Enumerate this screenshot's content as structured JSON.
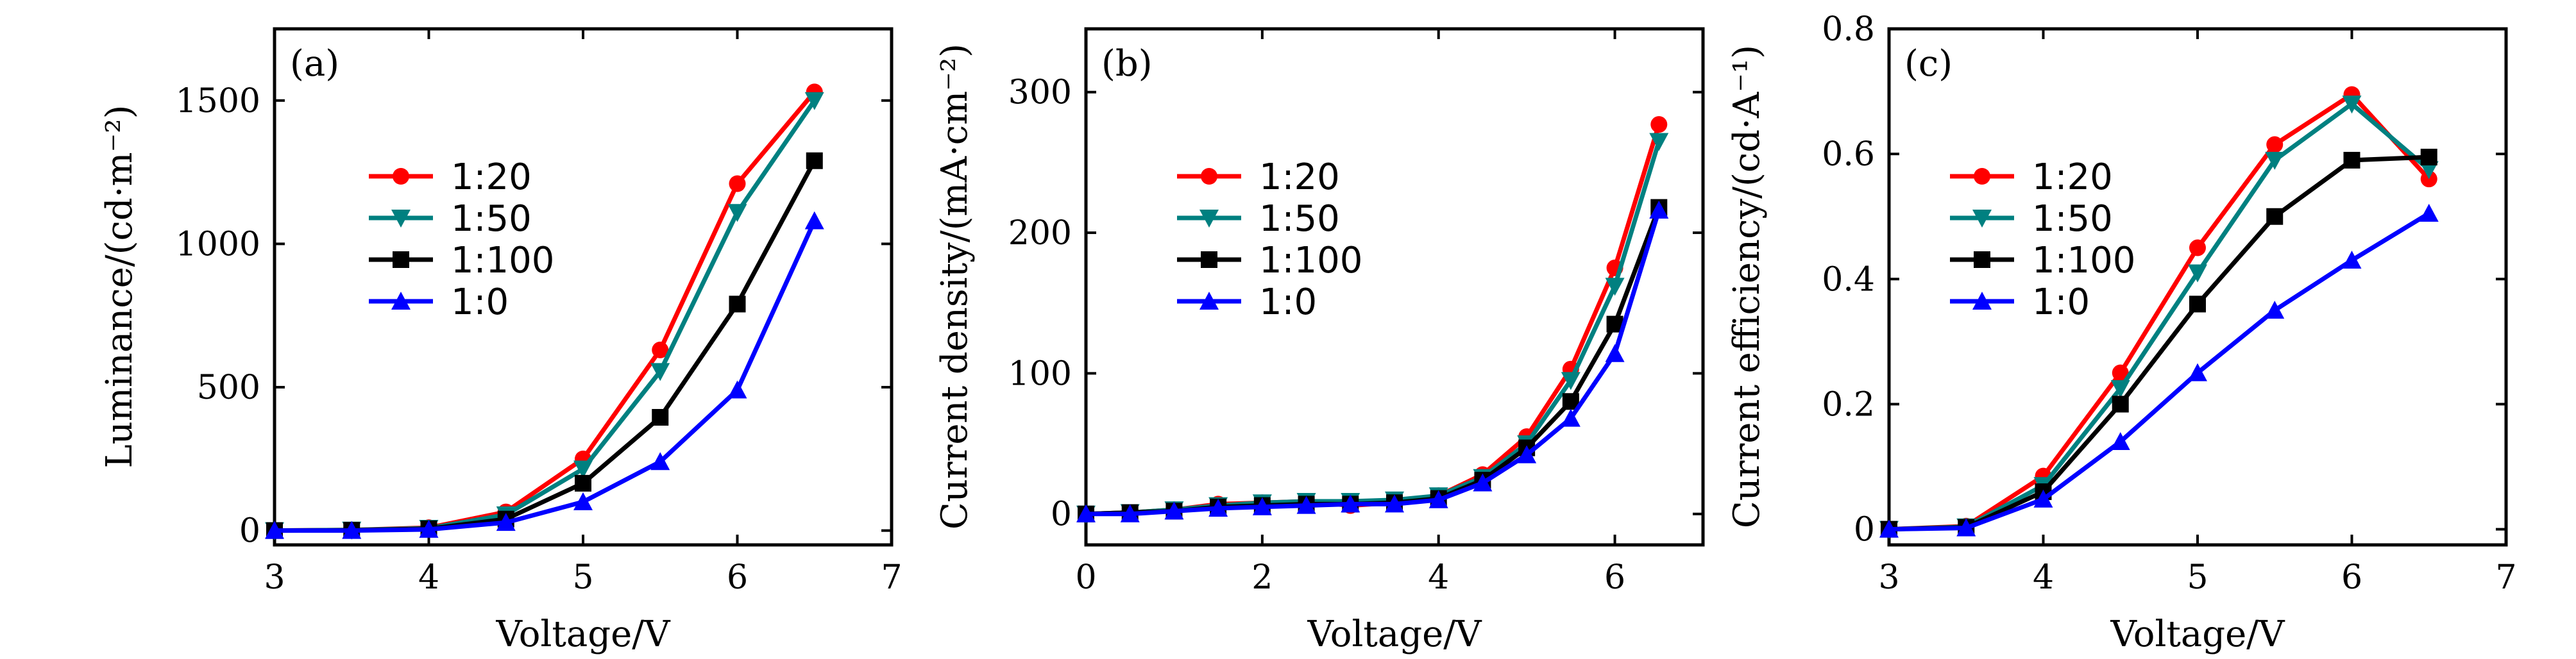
{
  "chart_data": [
    {
      "panel": "(a)",
      "type": "line",
      "xlabel": "Voltage/V",
      "ylabel": "Luminance/(cd·m⁻²)",
      "xlim": [
        3,
        7
      ],
      "ylim": [
        -50,
        1750
      ],
      "xticks": [
        3,
        4,
        5,
        6,
        7
      ],
      "yticks": [
        0,
        500,
        1000,
        1500
      ],
      "x": [
        3,
        3.5,
        4,
        4.5,
        5,
        5.5,
        6,
        6.5
      ],
      "series": [
        {
          "name": "1:20",
          "color": "#ff0000",
          "marker": "circle",
          "values": [
            0,
            2,
            10,
            65,
            250,
            630,
            1210,
            1530
          ]
        },
        {
          "name": "1:50",
          "color": "#008080",
          "marker": "triangle-down",
          "values": [
            0,
            2,
            8,
            55,
            215,
            555,
            1110,
            1500
          ]
        },
        {
          "name": "1:100",
          "color": "#000000",
          "marker": "square",
          "values": [
            0,
            1,
            6,
            40,
            165,
            395,
            790,
            1290
          ]
        },
        {
          "name": "1:0",
          "color": "#0000ff",
          "marker": "triangle-up",
          "values": [
            0,
            0,
            4,
            28,
            100,
            240,
            490,
            1080
          ]
        }
      ]
    },
    {
      "panel": "(b)",
      "type": "line",
      "xlabel": "Voltage/V",
      "ylabel": "Current density/(mA·cm⁻²)",
      "xlim": [
        0,
        7
      ],
      "ylim": [
        -22,
        345
      ],
      "xticks": [
        0,
        2,
        4,
        6
      ],
      "yticks": [
        0,
        100,
        200,
        300
      ],
      "x": [
        0,
        0.5,
        1,
        1.5,
        2,
        2.5,
        3,
        3.5,
        4,
        4.5,
        5,
        5.5,
        6,
        6.5
      ],
      "series": [
        {
          "name": "1:20",
          "color": "#ff0000",
          "marker": "circle",
          "values": [
            0,
            1,
            3,
            7,
            8,
            9,
            6,
            8,
            13,
            28,
            55,
            103,
            175,
            277
          ]
        },
        {
          "name": "1:50",
          "color": "#008080",
          "marker": "triangle-down",
          "values": [
            0,
            1,
            3,
            6,
            8,
            9,
            9,
            10,
            13,
            26,
            50,
            95,
            162,
            265
          ]
        },
        {
          "name": "1:100",
          "color": "#000000",
          "marker": "square",
          "values": [
            0,
            1,
            2,
            5,
            6,
            7,
            7,
            8,
            11,
            24,
            47,
            80,
            135,
            218
          ]
        },
        {
          "name": "1:0",
          "color": "#0000ff",
          "marker": "triangle-up",
          "values": [
            0,
            0,
            2,
            4,
            5,
            6,
            7,
            7,
            10,
            22,
            42,
            68,
            114,
            216
          ]
        }
      ]
    },
    {
      "panel": "(c)",
      "type": "line",
      "xlabel": "Voltage/V",
      "ylabel": "Current efficiency/(cd·A⁻¹)",
      "xlim": [
        3,
        7
      ],
      "ylim": [
        -0.025,
        0.8
      ],
      "xticks": [
        3,
        4,
        5,
        6,
        7
      ],
      "yticks": [
        0,
        0.2,
        0.4,
        0.6,
        0.8
      ],
      "ytick_labels": [
        "0",
        "0.2",
        "0.4",
        "0.6",
        "0.8"
      ],
      "x": [
        3,
        3.5,
        4,
        4.5,
        5,
        5.5,
        6,
        6.5
      ],
      "series": [
        {
          "name": "1:20",
          "color": "#ff0000",
          "marker": "circle",
          "values": [
            0,
            0.005,
            0.085,
            0.25,
            0.45,
            0.615,
            0.695,
            0.56
          ]
        },
        {
          "name": "1:50",
          "color": "#008080",
          "marker": "triangle-down",
          "values": [
            0,
            0.004,
            0.07,
            0.225,
            0.41,
            0.59,
            0.68,
            0.575
          ]
        },
        {
          "name": "1:100",
          "color": "#000000",
          "marker": "square",
          "values": [
            0,
            0.003,
            0.06,
            0.2,
            0.36,
            0.5,
            0.59,
            0.595
          ]
        },
        {
          "name": "1:0",
          "color": "#0000ff",
          "marker": "triangle-up",
          "values": [
            0,
            0.002,
            0.048,
            0.14,
            0.25,
            0.35,
            0.43,
            0.505
          ]
        }
      ]
    }
  ]
}
